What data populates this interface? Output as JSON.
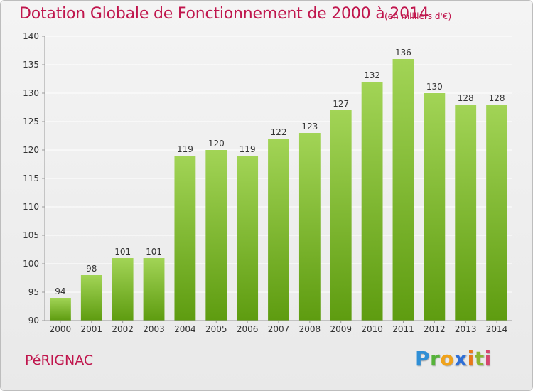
{
  "title": "Dotation Globale de Fonctionnement de 2000 à 2014",
  "subtitle": "(en milliers d'€)",
  "commune": "PéRIGNAC",
  "logo": "Proxiti",
  "colors": {
    "title": "#c0164d",
    "bar_light": "#9fd153",
    "bar_dark": "#5f9e12",
    "grid": "#ffffff",
    "axis": "#9a9a9a"
  },
  "chart_data": {
    "type": "bar",
    "categories": [
      "2000",
      "2001",
      "2002",
      "2003",
      "2004",
      "2005",
      "2006",
      "2007",
      "2008",
      "2009",
      "2010",
      "2011",
      "2012",
      "2013",
      "2014"
    ],
    "values": [
      94,
      98,
      101,
      101,
      119,
      120,
      119,
      122,
      123,
      127,
      132,
      136,
      130,
      128,
      128
    ],
    "data_labels": [
      "94",
      "98",
      "101",
      "101",
      "119",
      "120",
      "119",
      "122",
      "123",
      "127",
      "132",
      "136",
      "130",
      "128",
      "128"
    ],
    "ylim": [
      90,
      140
    ],
    "yticks": [
      90,
      95,
      100,
      105,
      110,
      115,
      120,
      125,
      130,
      135,
      140
    ],
    "grid": true,
    "xlabel": "",
    "ylabel": ""
  }
}
